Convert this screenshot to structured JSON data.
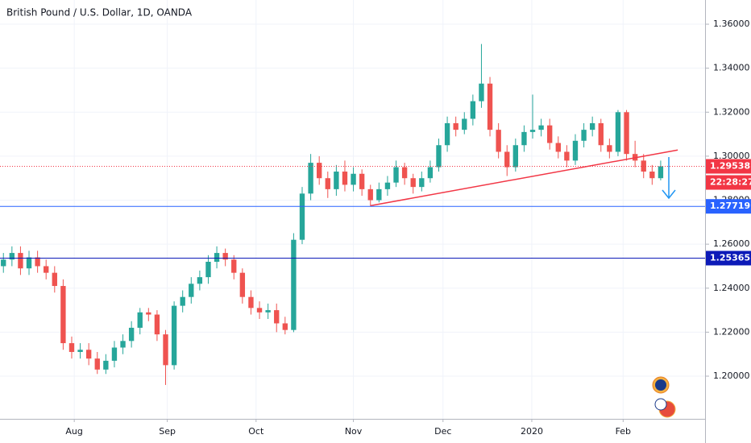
{
  "chart_data": {
    "type": "candlestick",
    "title": "British Pound / U.S. Dollar, 1D, OANDA",
    "up_color": "#26a69a",
    "down_color": "#ef5350",
    "open": [
      1.25,
      1.253,
      1.256,
      1.249,
      1.254,
      1.25,
      1.247,
      1.241,
      1.215,
      1.211,
      1.212,
      1.208,
      1.203,
      1.207,
      1.213,
      1.216,
      1.222,
      1.229,
      1.228,
      1.219,
      1.205,
      1.232,
      1.236,
      1.242,
      1.245,
      1.252,
      1.256,
      1.253,
      1.247,
      1.236,
      1.231,
      1.229,
      1.23,
      1.224,
      1.221,
      1.262,
      1.283,
      1.297,
      1.29,
      1.285,
      1.293,
      1.287,
      1.292,
      1.285,
      1.28,
      1.285,
      1.288,
      1.295,
      1.29,
      1.286,
      1.29,
      1.295,
      1.305,
      1.315,
      1.312,
      1.317,
      1.325,
      1.333,
      1.312,
      1.302,
      1.295,
      1.305,
      1.311,
      1.312,
      1.314,
      1.306,
      1.302,
      1.298,
      1.307,
      1.312,
      1.315,
      1.305,
      1.302,
      1.32,
      1.301,
      1.298,
      1.293,
      1.29
    ],
    "high": [
      1.256,
      1.259,
      1.259,
      1.257,
      1.257,
      1.253,
      1.25,
      1.244,
      1.218,
      1.215,
      1.215,
      1.211,
      1.21,
      1.216,
      1.219,
      1.225,
      1.231,
      1.231,
      1.23,
      1.221,
      1.234,
      1.239,
      1.245,
      1.248,
      1.255,
      1.259,
      1.258,
      1.255,
      1.249,
      1.239,
      1.234,
      1.233,
      1.233,
      1.227,
      1.265,
      1.286,
      1.301,
      1.3,
      1.293,
      1.296,
      1.298,
      1.295,
      1.294,
      1.287,
      1.288,
      1.291,
      1.298,
      1.297,
      1.292,
      1.293,
      1.298,
      1.308,
      1.318,
      1.318,
      1.32,
      1.328,
      1.351,
      1.336,
      1.315,
      1.305,
      1.308,
      1.314,
      1.328,
      1.317,
      1.317,
      1.309,
      1.305,
      1.31,
      1.315,
      1.318,
      1.317,
      1.308,
      1.321,
      1.321,
      1.307,
      1.301,
      1.296,
      1.298
    ],
    "low": [
      1.247,
      1.25,
      1.246,
      1.246,
      1.247,
      1.244,
      1.238,
      1.212,
      1.208,
      1.208,
      1.205,
      1.201,
      1.201,
      1.204,
      1.21,
      1.213,
      1.219,
      1.225,
      1.216,
      1.196,
      1.203,
      1.229,
      1.233,
      1.239,
      1.242,
      1.249,
      1.25,
      1.244,
      1.233,
      1.228,
      1.226,
      1.226,
      1.22,
      1.219,
      1.22,
      1.26,
      1.28,
      1.287,
      1.281,
      1.282,
      1.284,
      1.284,
      1.282,
      1.2772,
      1.279,
      1.282,
      1.286,
      1.287,
      1.283,
      1.284,
      1.288,
      1.293,
      1.302,
      1.309,
      1.31,
      1.314,
      1.322,
      1.309,
      1.299,
      1.291,
      1.293,
      1.302,
      1.308,
      1.309,
      1.303,
      1.299,
      1.295,
      1.296,
      1.304,
      1.309,
      1.302,
      1.299,
      1.3,
      1.298,
      1.295,
      1.29,
      1.287,
      1.289
    ],
    "close": [
      1.253,
      1.256,
      1.249,
      1.254,
      1.25,
      1.247,
      1.241,
      1.215,
      1.211,
      1.212,
      1.208,
      1.203,
      1.207,
      1.213,
      1.216,
      1.222,
      1.229,
      1.228,
      1.219,
      1.205,
      1.232,
      1.236,
      1.242,
      1.245,
      1.252,
      1.256,
      1.253,
      1.247,
      1.236,
      1.231,
      1.229,
      1.23,
      1.224,
      1.221,
      1.262,
      1.283,
      1.297,
      1.29,
      1.285,
      1.293,
      1.287,
      1.292,
      1.285,
      1.28,
      1.285,
      1.288,
      1.295,
      1.29,
      1.286,
      1.29,
      1.295,
      1.305,
      1.315,
      1.312,
      1.317,
      1.325,
      1.333,
      1.312,
      1.302,
      1.295,
      1.305,
      1.311,
      1.312,
      1.314,
      1.306,
      1.302,
      1.298,
      1.307,
      1.312,
      1.315,
      1.305,
      1.302,
      1.32,
      1.301,
      1.298,
      1.293,
      1.29,
      1.2954
    ],
    "xlim": [
      -0.4,
      82.2
    ],
    "xticks": [
      {
        "value": 8.3,
        "label": "Aug"
      },
      {
        "value": 19.2,
        "label": "Sep"
      },
      {
        "value": 29.6,
        "label": "Oct"
      },
      {
        "value": 41.0,
        "label": "Nov"
      },
      {
        "value": 51.5,
        "label": "Dec"
      },
      {
        "value": 61.9,
        "label": "2020"
      },
      {
        "value": 72.6,
        "label": "Feb"
      }
    ],
    "ylim": [
      1.1806,
      1.371
    ],
    "yticks": [
      {
        "value": 1.2,
        "label": "1.20000"
      },
      {
        "value": 1.22,
        "label": "1.22000"
      },
      {
        "value": 1.24,
        "label": "1.24000"
      },
      {
        "value": 1.26,
        "label": "1.26000"
      },
      {
        "value": 1.28,
        "label": "1.28000"
      },
      {
        "value": 1.3,
        "label": "1.30000"
      },
      {
        "value": 1.32,
        "label": "1.32000"
      },
      {
        "value": 1.34,
        "label": "1.34000"
      },
      {
        "value": 1.36,
        "label": "1.36000"
      }
    ],
    "grid": true,
    "levels": [
      {
        "value": 1.27719,
        "color": "#2962ff"
      },
      {
        "value": 1.25365,
        "color": "#0c1ab8"
      }
    ],
    "last_price": {
      "value": 1.29538,
      "color": "#f23645"
    },
    "countdown": "22:28:27",
    "trendline": {
      "x": [
        43,
        79
      ],
      "y": [
        1.2775,
        1.3028
      ],
      "color": "#f23645"
    }
  }
}
